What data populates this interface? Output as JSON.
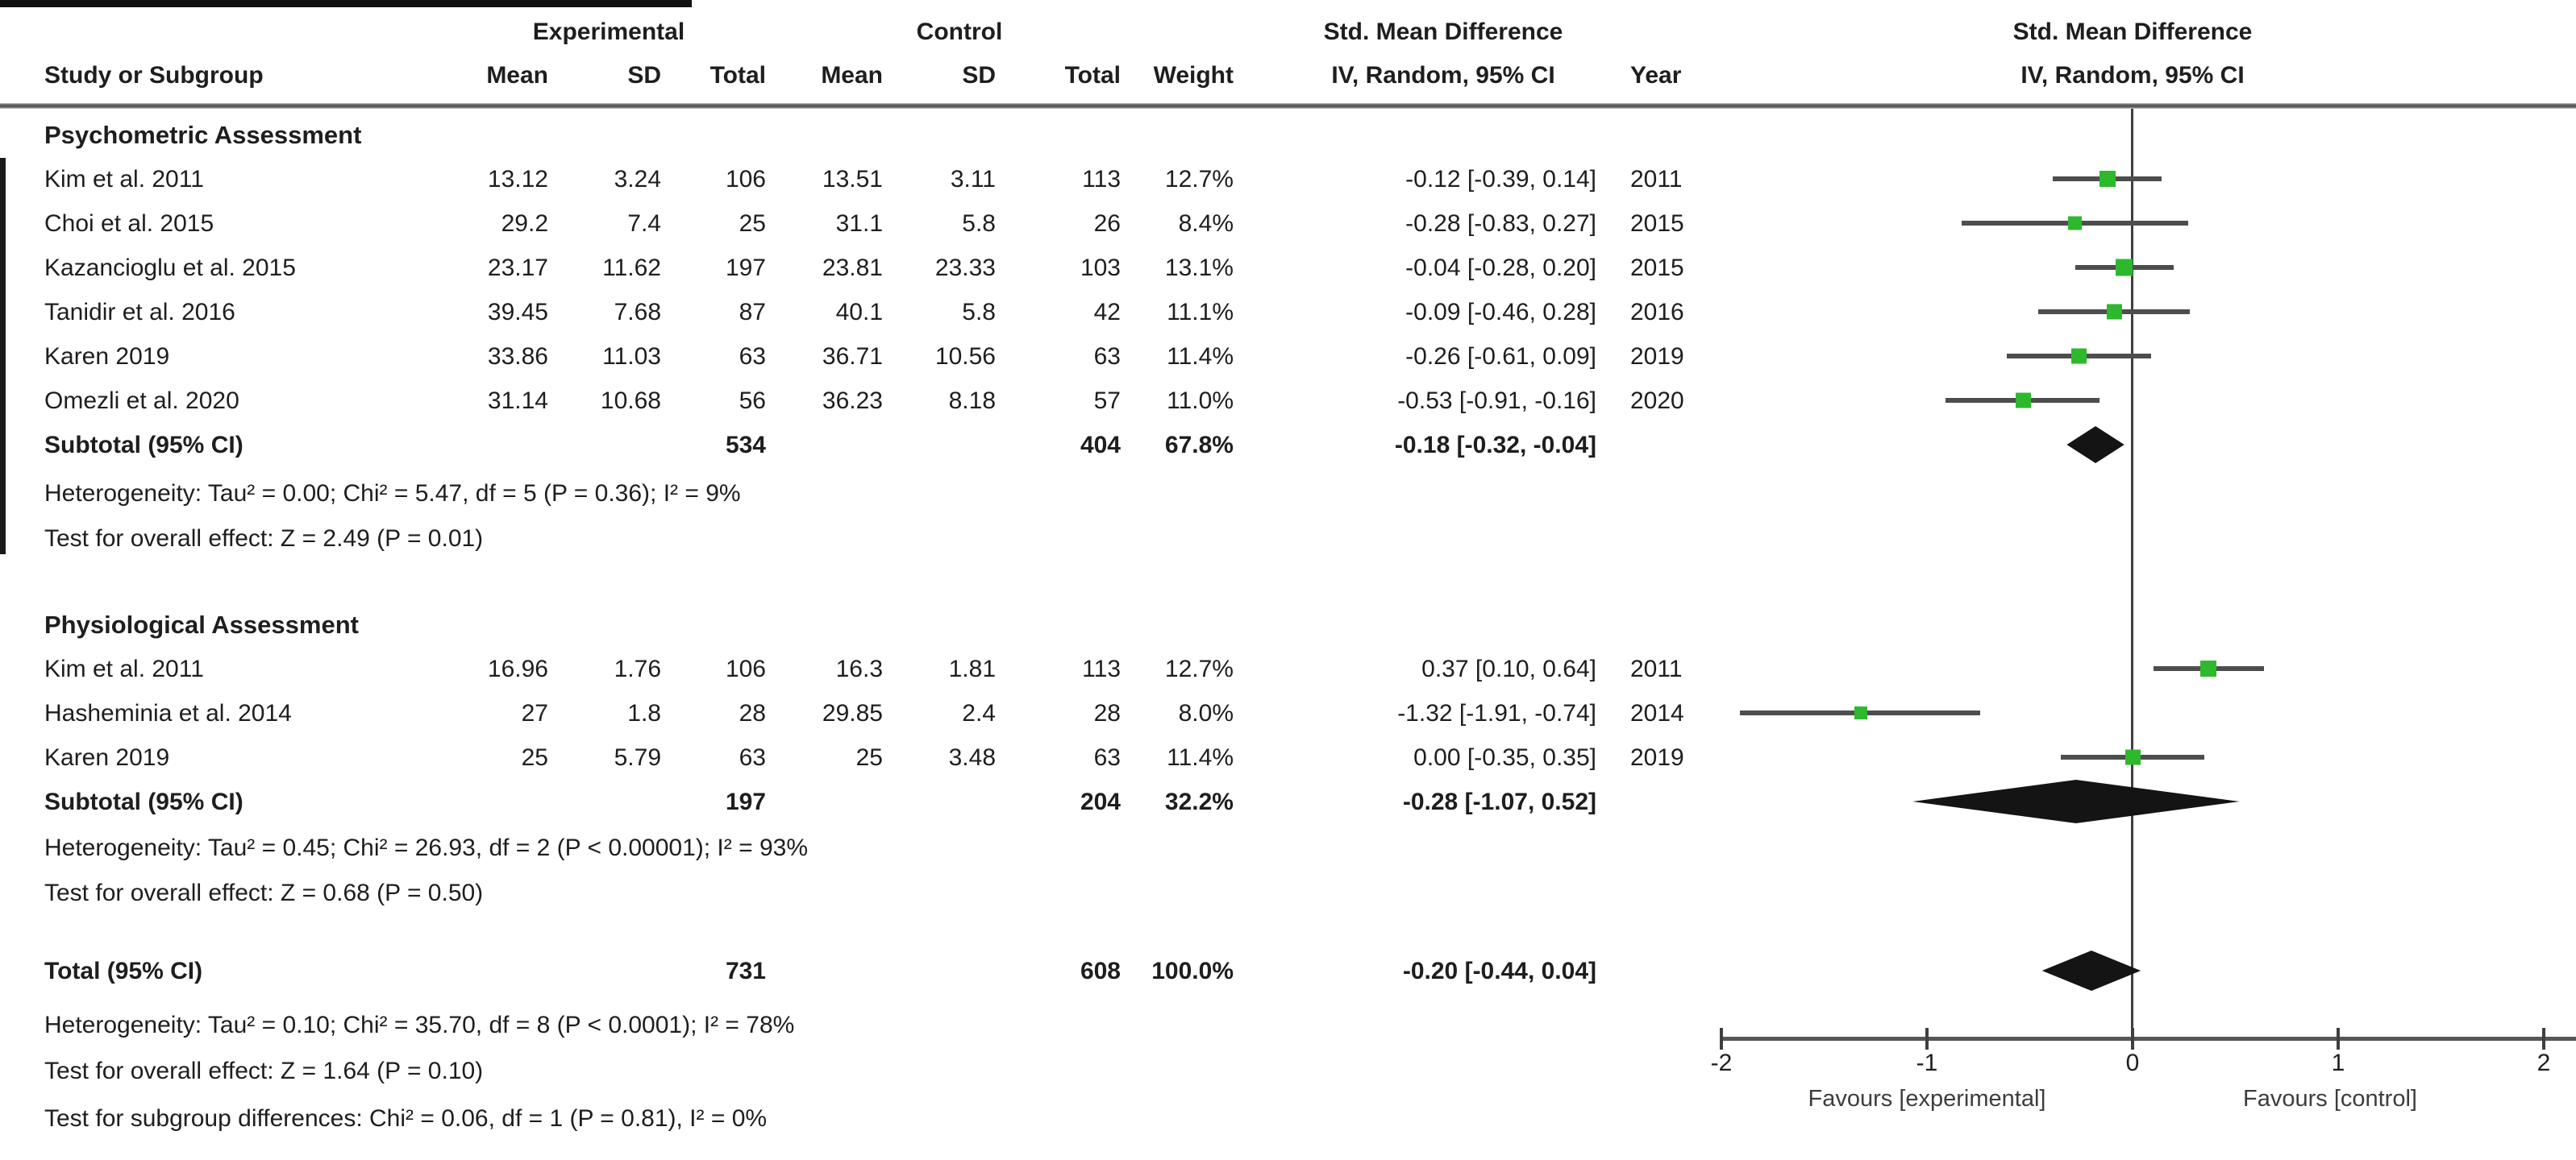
{
  "header": {
    "experimental": "Experimental",
    "control": "Control",
    "smd": "Std. Mean Difference",
    "method": "IV, Random, 95% CI",
    "study": "Study or Subgroup",
    "mean": "Mean",
    "sd": "SD",
    "total": "Total",
    "weight": "Weight",
    "year": "Year"
  },
  "axis": {
    "ticks": [
      "-2",
      "-1",
      "0",
      "1",
      "2"
    ],
    "favours_left": "Favours [experimental]",
    "favours_right": "Favours [control]"
  },
  "colors": {
    "marker_green": "#2eb82e",
    "ci_line": "#4d4d4d",
    "diamond": "#141414",
    "axis": "#565656"
  },
  "chart_data": {
    "type": "forest",
    "effect_measure": "Std. Mean Difference",
    "model": "IV, Random, 95% CI",
    "xlim": [
      -2,
      2
    ],
    "ticks": [
      -2,
      -1,
      0,
      1,
      2
    ],
    "groups": [
      {
        "name": "Psychometric Assessment",
        "rows": [
          {
            "study": "Kim et al. 2011",
            "mean_e": "13.12",
            "sd_e": "3.24",
            "total_e": "106",
            "mean_c": "13.51",
            "sd_c": "3.11",
            "total_c": "113",
            "weight": "12.7%",
            "w": 12.7,
            "ci": "-0.12 [-0.39, 0.14]",
            "year": "2011",
            "eff": -0.12,
            "lo": -0.39,
            "hi": 0.14
          },
          {
            "study": "Choi et al. 2015",
            "mean_e": "29.2",
            "sd_e": "7.4",
            "total_e": "25",
            "mean_c": "31.1",
            "sd_c": "5.8",
            "total_c": "26",
            "weight": "8.4%",
            "w": 8.4,
            "ci": "-0.28 [-0.83, 0.27]",
            "year": "2015",
            "eff": -0.28,
            "lo": -0.83,
            "hi": 0.27
          },
          {
            "study": "Kazancioglu et al. 2015",
            "mean_e": "23.17",
            "sd_e": "11.62",
            "total_e": "197",
            "mean_c": "23.81",
            "sd_c": "23.33",
            "total_c": "103",
            "weight": "13.1%",
            "w": 13.1,
            "ci": "-0.04 [-0.28, 0.20]",
            "year": "2015",
            "eff": -0.04,
            "lo": -0.28,
            "hi": 0.2
          },
          {
            "study": "Tanidir et al. 2016",
            "mean_e": "39.45",
            "sd_e": "7.68",
            "total_e": "87",
            "mean_c": "40.1",
            "sd_c": "5.8",
            "total_c": "42",
            "weight": "11.1%",
            "w": 11.1,
            "ci": "-0.09 [-0.46, 0.28]",
            "year": "2016",
            "eff": -0.09,
            "lo": -0.46,
            "hi": 0.28
          },
          {
            "study": "Karen 2019",
            "mean_e": "33.86",
            "sd_e": "11.03",
            "total_e": "63",
            "mean_c": "36.71",
            "sd_c": "10.56",
            "total_c": "63",
            "weight": "11.4%",
            "w": 11.4,
            "ci": "-0.26 [-0.61, 0.09]",
            "year": "2019",
            "eff": -0.26,
            "lo": -0.61,
            "hi": 0.09
          },
          {
            "study": "Omezli et al. 2020",
            "mean_e": "31.14",
            "sd_e": "10.68",
            "total_e": "56",
            "mean_c": "36.23",
            "sd_c": "8.18",
            "total_c": "57",
            "weight": "11.0%",
            "w": 11.0,
            "ci": "-0.53 [-0.91, -0.16]",
            "year": "2020",
            "eff": -0.53,
            "lo": -0.91,
            "hi": -0.16
          }
        ],
        "subtotal": {
          "label": "Subtotal (95% CI)",
          "total_e": "534",
          "total_c": "404",
          "weight": "67.8%",
          "ci": "-0.18 [-0.32, -0.04]",
          "eff": -0.18,
          "lo": -0.32,
          "hi": -0.04
        },
        "heterogeneity": "Heterogeneity: Tau² = 0.00; Chi² = 5.47, df = 5 (P = 0.36); I² = 9%",
        "overall": "Test for overall effect: Z = 2.49 (P = 0.01)"
      },
      {
        "name": "Physiological Assessment",
        "rows": [
          {
            "study": "Kim et al. 2011",
            "mean_e": "16.96",
            "sd_e": "1.76",
            "total_e": "106",
            "mean_c": "16.3",
            "sd_c": "1.81",
            "total_c": "113",
            "weight": "12.7%",
            "w": 12.7,
            "ci": "0.37 [0.10, 0.64]",
            "year": "2011",
            "eff": 0.37,
            "lo": 0.1,
            "hi": 0.64
          },
          {
            "study": "Hasheminia et al. 2014",
            "mean_e": "27",
            "sd_e": "1.8",
            "total_e": "28",
            "mean_c": "29.85",
            "sd_c": "2.4",
            "total_c": "28",
            "weight": "8.0%",
            "w": 8.0,
            "ci": "-1.32 [-1.91, -0.74]",
            "year": "2014",
            "eff": -1.32,
            "lo": -1.91,
            "hi": -0.74
          },
          {
            "study": "Karen 2019",
            "mean_e": "25",
            "sd_e": "5.79",
            "total_e": "63",
            "mean_c": "25",
            "sd_c": "3.48",
            "total_c": "63",
            "weight": "11.4%",
            "w": 11.4,
            "ci": "0.00 [-0.35, 0.35]",
            "year": "2019",
            "eff": 0.0,
            "lo": -0.35,
            "hi": 0.35
          }
        ],
        "subtotal": {
          "label": "Subtotal (95% CI)",
          "total_e": "197",
          "total_c": "204",
          "weight": "32.2%",
          "ci": "-0.28 [-1.07, 0.52]",
          "eff": -0.28,
          "lo": -1.07,
          "hi": 0.52
        },
        "heterogeneity": "Heterogeneity: Tau² = 0.45; Chi² = 26.93, df = 2 (P < 0.00001); I² = 93%",
        "overall": "Test for overall effect: Z = 0.68 (P = 0.50)"
      }
    ],
    "total": {
      "label": "Total (95% CI)",
      "total_e": "731",
      "total_c": "608",
      "weight": "100.0%",
      "ci": "-0.20 [-0.44, 0.04]",
      "eff": -0.2,
      "lo": -0.44,
      "hi": 0.04
    },
    "total_heterogeneity": "Heterogeneity: Tau² = 0.10; Chi² = 35.70, df = 8 (P < 0.0001); I² = 78%",
    "total_overall": "Test for overall effect: Z = 1.64 (P = 0.10)",
    "subgroup_diff": "Test for subgroup differences: Chi² = 0.06, df = 1 (P = 0.81), I² = 0%"
  }
}
